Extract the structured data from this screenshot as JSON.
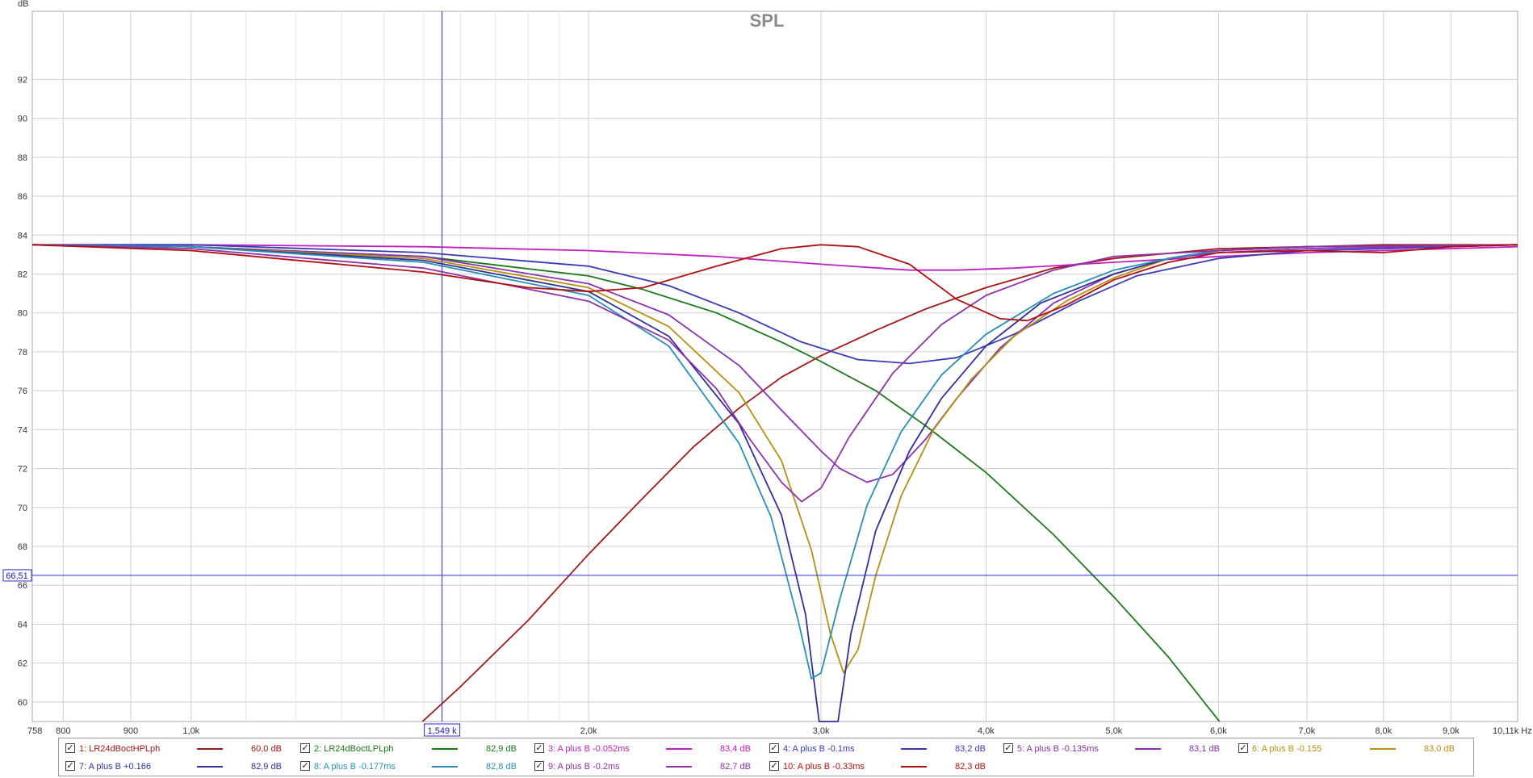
{
  "chart_data": {
    "type": "line",
    "title": "SPL",
    "ylabel": "dB",
    "xunit": "Hz",
    "xscale": "log",
    "xlim": [
      758,
      10110
    ],
    "ylim": [
      59,
      95.5
    ],
    "grid": true,
    "y_ticks": [
      "60",
      "62",
      "64",
      "66",
      "68",
      "70",
      "72",
      "74",
      "76",
      "78",
      "80",
      "82",
      "84",
      "86",
      "88",
      "90",
      "92"
    ],
    "x_ticks": [
      {
        "v": 758,
        "label": "758"
      },
      {
        "v": 800,
        "label": "800"
      },
      {
        "v": 900,
        "label": "900"
      },
      {
        "v": 1000,
        "label": "1,0k"
      },
      {
        "v": 2000,
        "label": "2,0k"
      },
      {
        "v": 3000,
        "label": "3,0k"
      },
      {
        "v": 4000,
        "label": "4,0k"
      },
      {
        "v": 5000,
        "label": "5,0k"
      },
      {
        "v": 6000,
        "label": "6,0k"
      },
      {
        "v": 7000,
        "label": "7,0k"
      },
      {
        "v": 8000,
        "label": "8,0k"
      },
      {
        "v": 9000,
        "label": "9,0k"
      },
      {
        "v": 10110,
        "label": "10,11k Hz"
      }
    ],
    "x_minor_grid": [
      1100,
      1200,
      1300,
      1400,
      1500,
      1600,
      1700,
      1800,
      1900
    ],
    "cursor": {
      "x": 1549,
      "x_label": "1,549 k",
      "y": 66.51,
      "y_label": "66,51"
    },
    "series": [
      {
        "name": "1: LR24dBoctHPLph",
        "value": "60,0 dB",
        "color": "#a01818",
        "points": [
          [
            1497,
            59
          ],
          [
            1600,
            60.8
          ],
          [
            1800,
            64.2
          ],
          [
            2000,
            67.6
          ],
          [
            2200,
            70.5
          ],
          [
            2400,
            73.1
          ],
          [
            2600,
            75.1
          ],
          [
            2800,
            76.7
          ],
          [
            3000,
            77.8
          ],
          [
            3300,
            79.1
          ],
          [
            3600,
            80.2
          ],
          [
            4000,
            81.3
          ],
          [
            4500,
            82.3
          ],
          [
            5000,
            82.8
          ],
          [
            6000,
            83.3
          ],
          [
            7000,
            83.4
          ],
          [
            8000,
            83.5
          ],
          [
            10110,
            83.5
          ]
        ]
      },
      {
        "name": "2: LR24dBoctLPLph",
        "value": "82,9 dB",
        "color": "#1a7a1a",
        "points": [
          [
            758,
            83.5
          ],
          [
            1000,
            83.4
          ],
          [
            1500,
            82.9
          ],
          [
            2000,
            81.9
          ],
          [
            2200,
            81.2
          ],
          [
            2500,
            80.0
          ],
          [
            2800,
            78.5
          ],
          [
            3000,
            77.5
          ],
          [
            3300,
            76.0
          ],
          [
            3600,
            74.2
          ],
          [
            4000,
            71.8
          ],
          [
            4500,
            68.6
          ],
          [
            5000,
            65.4
          ],
          [
            5500,
            62.3
          ],
          [
            6010,
            59
          ]
        ]
      },
      {
        "name": "3: A plus B -0.052ms",
        "value": "83,4 dB",
        "color": "#c020c0",
        "points": [
          [
            758,
            83.5
          ],
          [
            1000,
            83.5
          ],
          [
            1500,
            83.4
          ],
          [
            2000,
            83.2
          ],
          [
            2500,
            82.9
          ],
          [
            3000,
            82.5
          ],
          [
            3500,
            82.2
          ],
          [
            3800,
            82.2
          ],
          [
            4200,
            82.3
          ],
          [
            5000,
            82.6
          ],
          [
            6000,
            82.9
          ],
          [
            7000,
            83.1
          ],
          [
            8000,
            83.2
          ],
          [
            10110,
            83.4
          ]
        ]
      },
      {
        "name": "4: A plus B -0.1ms",
        "value": "83,2 dB",
        "color": "#3a3ab8",
        "points": [
          [
            758,
            83.5
          ],
          [
            1000,
            83.5
          ],
          [
            1500,
            83.1
          ],
          [
            2000,
            82.4
          ],
          [
            2300,
            81.4
          ],
          [
            2600,
            80.0
          ],
          [
            2900,
            78.5
          ],
          [
            3200,
            77.6
          ],
          [
            3500,
            77.4
          ],
          [
            3800,
            77.7
          ],
          [
            4200,
            78.9
          ],
          [
            4700,
            80.6
          ],
          [
            5200,
            81.9
          ],
          [
            6000,
            82.8
          ],
          [
            7000,
            83.2
          ],
          [
            8000,
            83.3
          ],
          [
            10110,
            83.5
          ]
        ]
      },
      {
        "name": "5: A plus B -0.135ms",
        "value": "83,1 dB",
        "color": "#8a30b0",
        "points": [
          [
            758,
            83.5
          ],
          [
            1000,
            83.4
          ],
          [
            1500,
            82.9
          ],
          [
            2000,
            81.5
          ],
          [
            2300,
            79.9
          ],
          [
            2600,
            77.3
          ],
          [
            2800,
            75.0
          ],
          [
            3000,
            72.9
          ],
          [
            3100,
            72.0
          ],
          [
            3250,
            71.3
          ],
          [
            3400,
            71.7
          ],
          [
            3600,
            73.5
          ],
          [
            3800,
            75.6
          ],
          [
            4100,
            78.2
          ],
          [
            4500,
            80.5
          ],
          [
            5000,
            82.0
          ],
          [
            5500,
            82.8
          ],
          [
            6000,
            83.1
          ],
          [
            7000,
            83.3
          ],
          [
            10110,
            83.5
          ]
        ]
      },
      {
        "name": "6: A plus B -0.155",
        "value": "83,0 dB",
        "color": "#b89010",
        "points": [
          [
            758,
            83.5
          ],
          [
            1000,
            83.4
          ],
          [
            1500,
            82.8
          ],
          [
            2000,
            81.3
          ],
          [
            2300,
            79.3
          ],
          [
            2600,
            75.9
          ],
          [
            2800,
            72.4
          ],
          [
            2950,
            67.8
          ],
          [
            3050,
            63.5
          ],
          [
            3120,
            61.5
          ],
          [
            3200,
            62.7
          ],
          [
            3300,
            66.5
          ],
          [
            3450,
            70.6
          ],
          [
            3650,
            74.0
          ],
          [
            3900,
            76.6
          ],
          [
            4200,
            78.8
          ],
          [
            4600,
            80.6
          ],
          [
            5000,
            81.8
          ],
          [
            5500,
            82.8
          ],
          [
            6000,
            83.2
          ],
          [
            7000,
            83.4
          ],
          [
            10110,
            83.5
          ]
        ]
      },
      {
        "name": "7: A plus B +0.166",
        "value": "82,9 dB",
        "color": "#303098",
        "points": [
          [
            758,
            83.5
          ],
          [
            1000,
            83.4
          ],
          [
            1500,
            82.7
          ],
          [
            2000,
            81.1
          ],
          [
            2300,
            78.8
          ],
          [
            2600,
            74.3
          ],
          [
            2800,
            69.6
          ],
          [
            2920,
            64.5
          ],
          [
            2990,
            59
          ],
          [
            3090,
            59
          ],
          [
            3160,
            63.5
          ],
          [
            3300,
            68.8
          ],
          [
            3500,
            72.9
          ],
          [
            3700,
            75.6
          ],
          [
            4000,
            78.3
          ],
          [
            4400,
            80.5
          ],
          [
            5000,
            82.0
          ],
          [
            5500,
            82.8
          ],
          [
            6000,
            83.2
          ],
          [
            7000,
            83.4
          ],
          [
            10110,
            83.5
          ]
        ]
      },
      {
        "name": "8: A plus B -0.177ms",
        "value": "82,8 dB",
        "color": "#2890b8",
        "points": [
          [
            758,
            83.5
          ],
          [
            1000,
            83.4
          ],
          [
            1500,
            82.6
          ],
          [
            2000,
            80.9
          ],
          [
            2300,
            78.3
          ],
          [
            2600,
            73.3
          ],
          [
            2750,
            69.5
          ],
          [
            2880,
            64.3
          ],
          [
            2950,
            61.2
          ],
          [
            3000,
            61.5
          ],
          [
            3100,
            65.3
          ],
          [
            3250,
            70.1
          ],
          [
            3450,
            73.9
          ],
          [
            3700,
            76.8
          ],
          [
            4000,
            78.9
          ],
          [
            4500,
            81.0
          ],
          [
            5000,
            82.2
          ],
          [
            5500,
            82.8
          ],
          [
            6000,
            83.2
          ],
          [
            7000,
            83.4
          ],
          [
            10110,
            83.5
          ]
        ]
      },
      {
        "name": "9: A plus B -0.2ms",
        "value": "82,7 dB",
        "color": "#9030a8",
        "points": [
          [
            758,
            83.5
          ],
          [
            1000,
            83.3
          ],
          [
            1500,
            82.3
          ],
          [
            2000,
            80.6
          ],
          [
            2300,
            78.6
          ],
          [
            2500,
            76.1
          ],
          [
            2650,
            73.5
          ],
          [
            2800,
            71.3
          ],
          [
            2900,
            70.3
          ],
          [
            3000,
            71.0
          ],
          [
            3150,
            73.6
          ],
          [
            3400,
            76.9
          ],
          [
            3700,
            79.4
          ],
          [
            4000,
            80.9
          ],
          [
            4500,
            82.2
          ],
          [
            5000,
            82.9
          ],
          [
            6000,
            83.2
          ],
          [
            7000,
            83.4
          ],
          [
            10110,
            83.5
          ]
        ]
      },
      {
        "name": "10: A plus B -0.33ms",
        "value": "82,3 dB",
        "color": "#b01010",
        "points": [
          [
            758,
            83.5
          ],
          [
            1000,
            83.2
          ],
          [
            1500,
            82.1
          ],
          [
            1800,
            81.3
          ],
          [
            2000,
            81.1
          ],
          [
            2200,
            81.3
          ],
          [
            2500,
            82.4
          ],
          [
            2800,
            83.3
          ],
          [
            3000,
            83.5
          ],
          [
            3200,
            83.4
          ],
          [
            3500,
            82.5
          ],
          [
            3800,
            80.7
          ],
          [
            4100,
            79.7
          ],
          [
            4300,
            79.6
          ],
          [
            4600,
            80.4
          ],
          [
            5000,
            81.7
          ],
          [
            5500,
            82.6
          ],
          [
            6000,
            83.1
          ],
          [
            7000,
            83.2
          ],
          [
            8000,
            83.1
          ],
          [
            9000,
            83.4
          ],
          [
            10110,
            83.5
          ]
        ]
      }
    ]
  }
}
